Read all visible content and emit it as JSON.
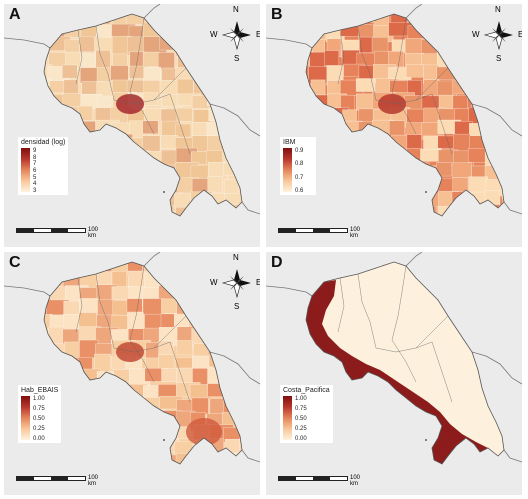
{
  "panels": [
    {
      "id": "A",
      "label": "A",
      "legend": {
        "title": "densidad (log)",
        "ticks": [
          "9",
          "8",
          "7",
          "6",
          "5",
          "4",
          "3"
        ],
        "colors": [
          "#fff3df",
          "#f9c79a",
          "#e5855b",
          "#b7372c",
          "#7f0f0f"
        ]
      },
      "fill_palette": [
        "#f7dcb6",
        "#f3cfa3",
        "#eec095",
        "#fae6c8",
        "#f0c697",
        "#e4a57c"
      ],
      "core_color": "#a6282b",
      "compass": true,
      "scale_label": "100 km"
    },
    {
      "id": "B",
      "label": "B",
      "legend": {
        "title": "IBM",
        "ticks": [
          "0.9",
          "0.8",
          "0.7",
          "0.6"
        ],
        "colors": [
          "#fff3df",
          "#f9c79a",
          "#e5855b",
          "#b7372c",
          "#7f0f0f"
        ]
      },
      "fill_palette": [
        "#e7835a",
        "#f2a77a",
        "#dc6a49",
        "#f6c093",
        "#e99468",
        "#fbdcb5"
      ],
      "core_color": "#b6372d",
      "compass": true,
      "scale_label": "100 km"
    },
    {
      "id": "C",
      "label": "C",
      "legend": {
        "title": "Hab_EBAIS",
        "ticks": [
          "1.00",
          "0.75",
          "0.50",
          "0.25",
          "0.00"
        ],
        "colors": [
          "#fff3df",
          "#f9c79a",
          "#e5855b",
          "#b7372c",
          "#7f0f0f"
        ]
      },
      "fill_palette": [
        "#f7cfa3",
        "#f4c08f",
        "#fbe3c3",
        "#eea77c",
        "#e99066",
        "#fad8b3"
      ],
      "core_color": "#c24a34",
      "compass": true,
      "scale_label": "100 km"
    },
    {
      "id": "D",
      "label": "D",
      "legend": {
        "title": "Costa_Pacifica",
        "ticks": [
          "1.00",
          "0.75",
          "0.50",
          "0.25",
          "0.00"
        ],
        "colors": [
          "#fff3df",
          "#f9c79a",
          "#e5855b",
          "#b7372c",
          "#7f0f0f"
        ]
      },
      "fill_palette": [
        "#fdf1dd"
      ],
      "pacific_color": "#8c1c1c",
      "compass": false,
      "scale_label": "100 km"
    }
  ],
  "compass_labels": {
    "n": "N",
    "s": "S",
    "e": "E",
    "w": "W"
  }
}
